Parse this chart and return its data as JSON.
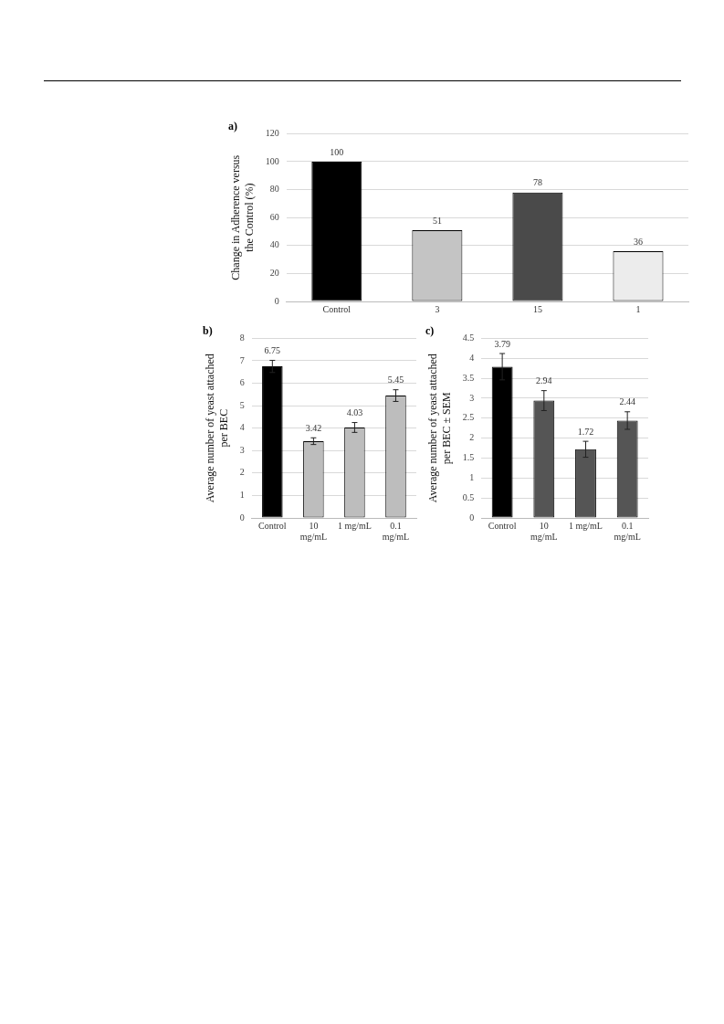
{
  "chart_data": [
    {
      "type": "bar",
      "title": "a)",
      "ylabel": "Change in Adherence versus the Control (%)",
      "categories": [
        "Control",
        "3",
        "15",
        "1"
      ],
      "values": [
        100,
        51,
        78,
        36
      ],
      "colors": [
        "#000000",
        "#c4c4c4",
        "#4a4a4a",
        "#ececec"
      ],
      "ylim": [
        0,
        120
      ],
      "yticks": [
        0,
        20,
        40,
        60,
        80,
        100,
        120
      ],
      "grid": "y",
      "data_labels": true
    },
    {
      "type": "bar",
      "title": "b)",
      "ylabel": "Average number of yeast attached per BEC",
      "categories": [
        "Control",
        "10 mg/mL",
        "1 mg/mL",
        "0.1 mg/mL"
      ],
      "values": [
        6.75,
        3.42,
        4.03,
        5.45
      ],
      "errors": [
        0.27,
        0.15,
        0.22,
        0.26
      ],
      "colors": [
        "#000000",
        "#bdbdbd",
        "#bdbdbd",
        "#bdbdbd"
      ],
      "ylim": [
        0,
        8
      ],
      "yticks": [
        0,
        1,
        2,
        3,
        4,
        5,
        6,
        7,
        8
      ],
      "grid": "y",
      "data_labels": true
    },
    {
      "type": "bar",
      "title": "c)",
      "ylabel": "Average number of yeast attached per BEC ± SEM",
      "categories": [
        "Control",
        "10 mg/mL",
        "1 mg/mL",
        "0.1 mg/mL"
      ],
      "values": [
        3.79,
        2.94,
        1.72,
        2.44
      ],
      "errors": [
        0.33,
        0.25,
        0.2,
        0.22
      ],
      "colors": [
        "#000000",
        "#555555",
        "#555555",
        "#555555"
      ],
      "ylim": [
        0,
        4.5
      ],
      "yticks": [
        0,
        0.5,
        1,
        1.5,
        2,
        2.5,
        3,
        3.5,
        4,
        4.5
      ],
      "grid": "y",
      "data_labels": true
    }
  ]
}
